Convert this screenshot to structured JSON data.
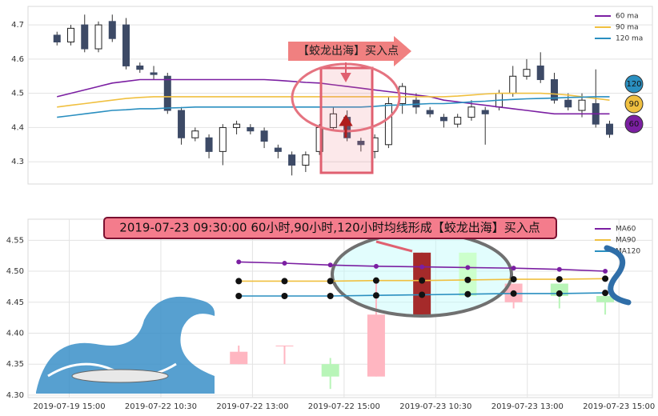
{
  "chart_data": [
    {
      "type": "candlestick",
      "open": [
        4.67,
        4.65,
        4.7,
        4.63,
        4.71,
        4.7,
        4.58,
        4.56,
        4.55,
        4.45,
        4.37,
        4.37,
        4.33,
        4.4,
        4.4,
        4.39,
        4.34,
        4.32,
        4.29,
        4.33,
        4.4,
        4.43,
        4.36,
        4.33,
        4.35,
        4.47,
        4.48,
        4.45,
        4.43,
        4.41,
        4.43,
        4.45,
        4.46,
        4.5,
        4.55,
        4.58,
        4.54,
        4.48,
        4.45,
        4.47,
        4.41
      ],
      "close": [
        4.65,
        4.69,
        4.63,
        4.7,
        4.66,
        4.58,
        4.57,
        4.555,
        4.45,
        4.37,
        4.39,
        4.33,
        4.4,
        4.41,
        4.39,
        4.36,
        4.33,
        4.29,
        4.32,
        4.4,
        4.44,
        4.37,
        4.35,
        4.37,
        4.47,
        4.52,
        4.46,
        4.44,
        4.42,
        4.43,
        4.46,
        4.44,
        4.5,
        4.55,
        4.57,
        4.54,
        4.48,
        4.46,
        4.48,
        4.41,
        4.38
      ],
      "high": [
        4.68,
        4.7,
        4.73,
        4.71,
        4.73,
        4.72,
        4.59,
        4.58,
        4.56,
        4.46,
        4.4,
        4.38,
        4.41,
        4.42,
        4.41,
        4.4,
        4.35,
        4.33,
        4.33,
        4.41,
        4.46,
        4.45,
        4.37,
        4.38,
        4.49,
        4.53,
        4.5,
        4.46,
        4.44,
        4.44,
        4.48,
        4.46,
        4.51,
        4.58,
        4.6,
        4.62,
        4.56,
        4.5,
        4.5,
        4.57,
        4.42
      ],
      "low": [
        4.64,
        4.64,
        4.62,
        4.62,
        4.65,
        4.57,
        4.56,
        4.54,
        4.44,
        4.35,
        4.36,
        4.31,
        4.29,
        4.38,
        4.38,
        4.34,
        4.31,
        4.26,
        4.27,
        4.32,
        4.39,
        4.36,
        4.33,
        4.31,
        4.34,
        4.44,
        4.44,
        4.43,
        4.4,
        4.4,
        4.42,
        4.35,
        4.45,
        4.49,
        4.54,
        4.53,
        4.47,
        4.45,
        4.43,
        4.4,
        4.37
      ],
      "up_color": "#ffffff",
      "down_color": "#3d4a66",
      "series": [
        {
          "name": "60 ma",
          "color": "#7b1fa2",
          "badge": "60",
          "values": [
            4.49,
            4.5,
            4.51,
            4.52,
            4.53,
            4.535,
            4.54,
            4.54,
            4.54,
            4.54,
            4.54,
            4.54,
            4.54,
            4.54,
            4.54,
            4.54,
            4.538,
            4.535,
            4.532,
            4.53,
            4.525,
            4.52,
            4.515,
            4.51,
            4.505,
            4.5,
            4.495,
            4.49,
            4.48,
            4.475,
            4.47,
            4.465,
            4.46,
            4.455,
            4.45,
            4.445,
            4.44,
            4.44,
            4.44,
            4.44,
            4.44
          ]
        },
        {
          "name": "90 ma",
          "color": "#f0c040",
          "badge": "90",
          "values": [
            4.46,
            4.465,
            4.47,
            4.475,
            4.48,
            4.485,
            4.488,
            4.49,
            4.49,
            4.49,
            4.49,
            4.49,
            4.49,
            4.49,
            4.49,
            4.49,
            4.49,
            4.49,
            4.49,
            4.49,
            4.49,
            4.49,
            4.49,
            4.49,
            4.49,
            4.49,
            4.49,
            4.49,
            4.49,
            4.492,
            4.495,
            4.498,
            4.5,
            4.5,
            4.5,
            4.5,
            4.498,
            4.495,
            4.49,
            4.485,
            4.48
          ]
        },
        {
          "name": "120 ma",
          "color": "#2a8fc0",
          "badge": "120",
          "values": [
            4.43,
            4.435,
            4.44,
            4.445,
            4.45,
            4.452,
            4.455,
            4.455,
            4.457,
            4.458,
            4.46,
            4.46,
            4.46,
            4.46,
            4.46,
            4.46,
            4.46,
            4.46,
            4.46,
            4.46,
            4.46,
            4.46,
            4.46,
            4.462,
            4.465,
            4.466,
            4.468,
            4.47,
            4.47,
            4.472,
            4.475,
            4.477,
            4.48,
            4.482,
            4.484,
            4.485,
            4.486,
            4.488,
            4.489,
            4.49,
            4.49
          ]
        }
      ],
      "annotation": "【蛟龙出海】买入点",
      "xlim": [
        -2.1,
        43.1
      ],
      "ylim": [
        4.235,
        4.754
      ],
      "yticks": [
        4.3,
        4.4,
        4.5,
        4.6,
        4.7
      ],
      "grid": true,
      "legend": "upper right"
    },
    {
      "type": "candlestick",
      "title": "2019-07-23 09:30:00 60小时,90小时,120小时均线形成【蛟龙出海】买入点",
      "open": [
        4.35,
        4.38,
        4.35,
        4.33,
        4.43,
        4.53,
        4.45,
        4.48,
        4.46
      ],
      "close": [
        4.37,
        4.38,
        4.33,
        4.43,
        4.53,
        4.46,
        4.48,
        4.46,
        4.45
      ],
      "high": [
        4.38,
        4.38,
        4.36,
        4.48,
        4.53,
        4.53,
        4.48,
        4.48,
        4.46
      ],
      "low": [
        4.35,
        4.35,
        4.31,
        4.33,
        4.43,
        4.46,
        4.44,
        4.44,
        4.43
      ],
      "colors": [
        "#ffb6c1",
        "#ffb6c1",
        "#b8f5b8",
        "#ffb6c1",
        "#a52a2a",
        "#ccffcc",
        "#ffb6c1",
        "#b8f5b8",
        "#b8f5b8"
      ],
      "series": [
        {
          "name": "MA60",
          "color": "#7b1fa2",
          "values": [
            4.515,
            4.513,
            4.51,
            4.508,
            4.507,
            4.506,
            4.505,
            4.503,
            4.5
          ]
        },
        {
          "name": "MA90",
          "color": "#f0c040",
          "values": [
            4.484,
            4.484,
            4.484,
            4.485,
            4.485,
            4.486,
            4.487,
            4.487,
            4.488
          ]
        },
        {
          "name": "MA120",
          "color": "#2a8fc0",
          "values": [
            4.46,
            4.46,
            4.46,
            4.461,
            4.462,
            4.463,
            4.464,
            4.464,
            4.465
          ]
        }
      ],
      "markers": true,
      "xlim": [
        -4.6,
        9.03
      ],
      "xticks": [
        {
          "value": -3.7,
          "label": "2019-07-19 15:00"
        },
        {
          "value": -1.7,
          "label": "2019-07-22 10:30"
        },
        {
          "value": 0.3,
          "label": "2019-07-22 13:00"
        },
        {
          "value": 2.3,
          "label": "2019-07-22 15:00"
        },
        {
          "value": 4.3,
          "label": "2019-07-23 10:30"
        },
        {
          "value": 6.3,
          "label": "2019-07-23 13:00"
        },
        {
          "value": 8.3,
          "label": "2019-07-23 15:00"
        }
      ],
      "ylim": [
        4.296,
        4.584
      ],
      "yticks": [
        {
          "value": 4.3,
          "label": "4.30"
        },
        4.35,
        {
          "value": 4.4,
          "label": "4.40"
        },
        4.45,
        {
          "value": 4.5,
          "label": "4.50"
        },
        4.55
      ],
      "grid": true,
      "legend": "upper right"
    }
  ]
}
